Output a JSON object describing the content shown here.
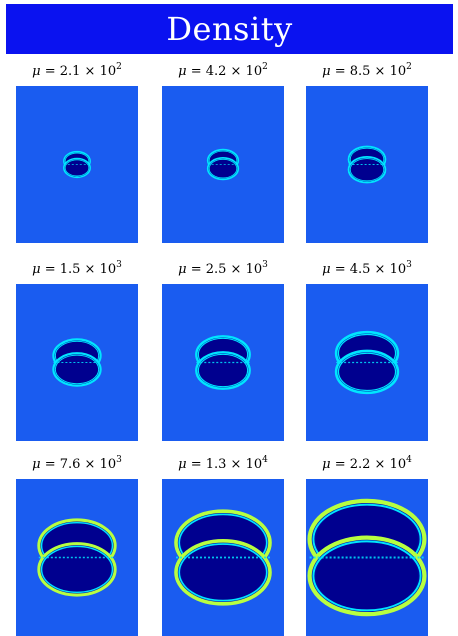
{
  "header": {
    "title": "Density"
  },
  "panels": [
    {
      "label_prefix": "μ = ",
      "mantissa": "2.1",
      "times": " × 10",
      "exponent": "2",
      "scale": 0.1
    },
    {
      "label_prefix": "μ = ",
      "mantissa": "4.2",
      "times": " × 10",
      "exponent": "2",
      "scale": 0.14
    },
    {
      "label_prefix": "μ = ",
      "mantissa": "8.5",
      "times": " × 10",
      "exponent": "2",
      "scale": 0.2
    },
    {
      "label_prefix": "μ = ",
      "mantissa": "1.5",
      "times": " × 10",
      "exponent": "3",
      "scale": 0.3
    },
    {
      "label_prefix": "μ = ",
      "mantissa": "2.5",
      "times": " × 10",
      "exponent": "3",
      "scale": 0.36
    },
    {
      "label_prefix": "μ = ",
      "mantissa": "4.5",
      "times": " × 10",
      "exponent": "3",
      "scale": 0.44
    },
    {
      "label_prefix": "μ = ",
      "mantissa": "7.6",
      "times": " × 10",
      "exponent": "3",
      "scale": 0.58
    },
    {
      "label_prefix": "μ = ",
      "mantissa": "1.3",
      "times": " × 10",
      "exponent": "4",
      "scale": 0.75
    },
    {
      "label_prefix": "μ = ",
      "mantissa": "2.2",
      "times": " × 10",
      "exponent": "4",
      "scale": 0.95
    }
  ],
  "colors": {
    "header_bg": "#0a12f0",
    "background_field": "#1a5cf0",
    "interior": "#00008f",
    "rim_inner": "#00e6ff",
    "rim_outer": "#b8ff40"
  }
}
